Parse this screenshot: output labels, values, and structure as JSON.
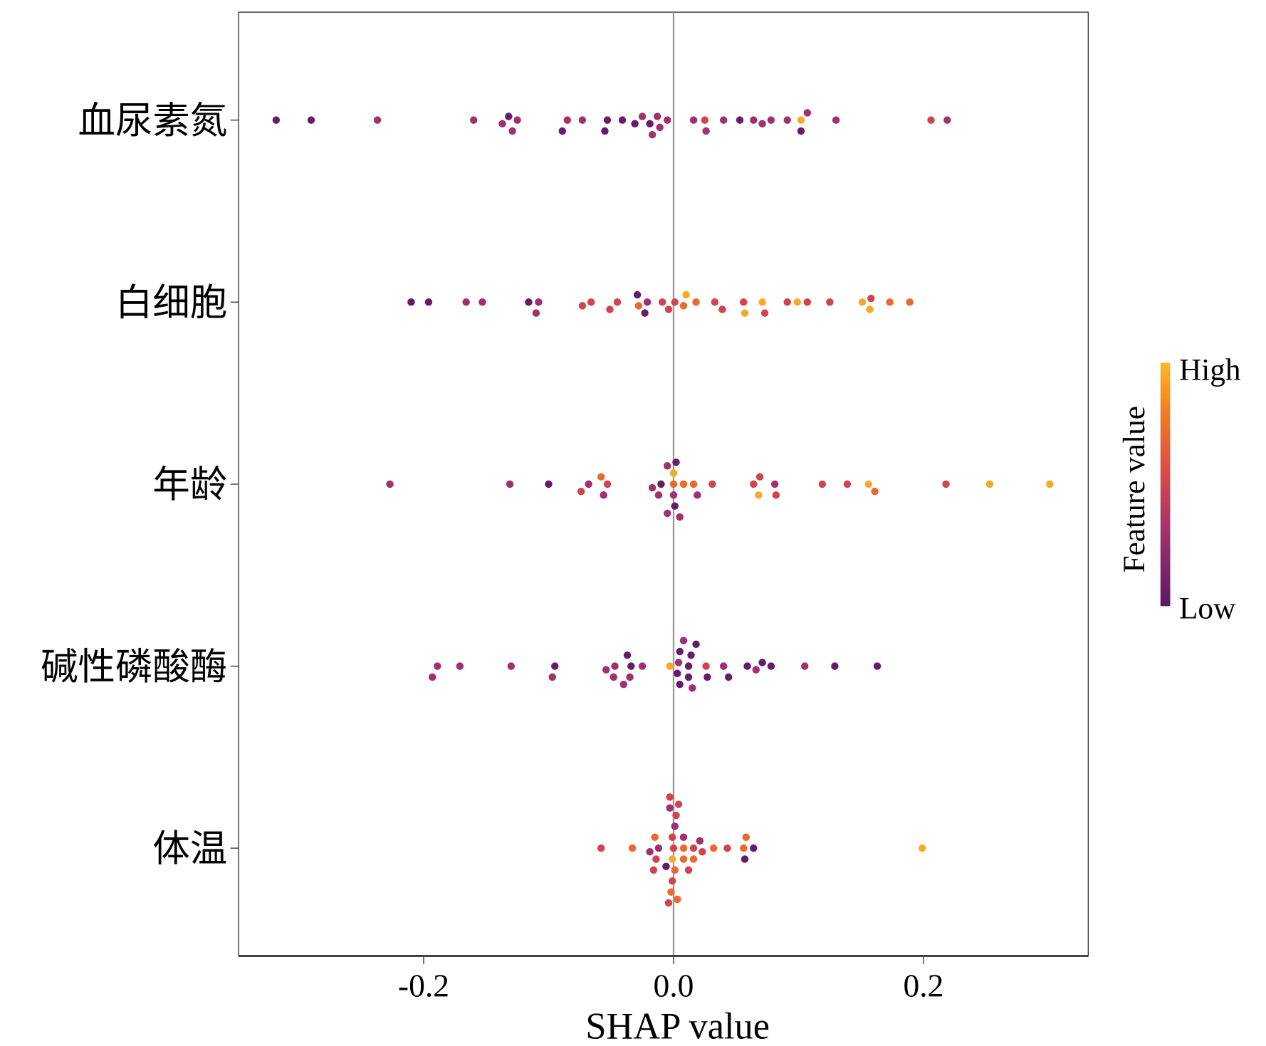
{
  "chart_data": {
    "type": "scatter",
    "subtype": "shap-beeswarm",
    "xlabel": "SHAP value",
    "ylabel": "",
    "xlim": [
      -0.345,
      0.335
    ],
    "xticks": [
      -0.2,
      0.0,
      0.2
    ],
    "xtick_labels": [
      "-0.2",
      "0.0",
      "0.2"
    ],
    "grid": false,
    "zero_line": true,
    "legend": {
      "title": "Feature value",
      "high_label": "High",
      "low_label": "Low",
      "placement": "right",
      "low_color": "#5a1868",
      "high_color": "#fbb829"
    },
    "features": [
      {
        "name": "血尿素氮",
        "points": [
          [
            -0.031,
            0.05
          ],
          [
            -0.013,
            0.3
          ],
          [
            0.025,
            0.5
          ],
          [
            0.102,
            0.95
          ],
          [
            0.064,
            0.3
          ],
          [
            0.078,
            0.3
          ],
          [
            -0.129,
            0.3
          ],
          [
            -0.073,
            0.3
          ],
          [
            -0.053,
            0.05
          ],
          [
            -0.005,
            0.3
          ],
          [
            -0.137,
            0.3
          ],
          [
            -0.089,
            0.05
          ],
          [
            -0.019,
            0.05
          ],
          [
            0.04,
            0.3
          ],
          [
            0.206,
            0.5
          ],
          [
            -0.237,
            0.3
          ],
          [
            -0.318,
            0.05
          ],
          [
            -0.29,
            0.05
          ],
          [
            -0.132,
            0.05
          ],
          [
            -0.16,
            0.3
          ],
          [
            -0.085,
            0.3
          ],
          [
            -0.041,
            0.05
          ],
          [
            0.016,
            0.3
          ],
          [
            0.053,
            0.05
          ],
          [
            0.091,
            0.3
          ],
          [
            0.107,
            0.3
          ],
          [
            0.13,
            0.3
          ],
          [
            0.219,
            0.3
          ],
          [
            -0.125,
            0.3
          ],
          [
            -0.055,
            0.05
          ],
          [
            -0.017,
            0.3
          ],
          [
            0.026,
            0.3
          ],
          [
            0.071,
            0.3
          ],
          [
            0.102,
            0.05
          ],
          [
            -0.011,
            0.3
          ],
          [
            -0.025,
            0.3
          ]
        ]
      },
      {
        "name": "白细胞",
        "points": [
          [
            -0.021,
            0.3
          ],
          [
            -0.045,
            0.5
          ],
          [
            0.008,
            0.7
          ],
          [
            0.039,
            0.5
          ],
          [
            0.073,
            0.5
          ],
          [
            0.125,
            0.5
          ],
          [
            -0.028,
            0.7
          ],
          [
            -0.108,
            0.3
          ],
          [
            0.018,
            0.7
          ],
          [
            0.099,
            0.95
          ],
          [
            0.173,
            0.7
          ],
          [
            -0.166,
            0.3
          ],
          [
            -0.116,
            0.05
          ],
          [
            -0.066,
            0.5
          ],
          [
            0.057,
            0.95
          ],
          [
            0.157,
            0.95
          ],
          [
            -0.21,
            0.05
          ],
          [
            -0.196,
            0.05
          ],
          [
            -0.11,
            0.3
          ],
          [
            -0.004,
            0.5
          ],
          [
            0.033,
            0.5
          ],
          [
            0.107,
            0.5
          ],
          [
            -0.023,
            0.05
          ],
          [
            -0.153,
            0.3
          ],
          [
            -0.051,
            0.5
          ],
          [
            0.071,
            0.95
          ],
          [
            0.158,
            0.5
          ],
          [
            0.189,
            0.7
          ],
          [
            0.091,
            0.5
          ],
          [
            -0.073,
            0.5
          ],
          [
            0.001,
            0.5
          ],
          [
            0.151,
            0.95
          ],
          [
            -0.029,
            0.05
          ],
          [
            0.01,
            0.95
          ],
          [
            0.056,
            0.5
          ],
          [
            -0.009,
            0.5
          ]
        ]
      },
      {
        "name": "年龄",
        "points": [
          [
            0.0,
            0.7
          ],
          [
            0.002,
            0.05
          ],
          [
            -0.01,
            0.05
          ],
          [
            0.019,
            0.3
          ],
          [
            -0.005,
            0.3
          ],
          [
            0.008,
            0.7
          ],
          [
            -0.056,
            0.3
          ],
          [
            0.069,
            0.5
          ],
          [
            0.082,
            0.5
          ],
          [
            0.139,
            0.5
          ],
          [
            -0.068,
            0.3
          ],
          [
            -0.017,
            0.3
          ],
          [
            0.064,
            0.5
          ],
          [
            0.119,
            0.5
          ],
          [
            0.161,
            0.7
          ],
          [
            0.253,
            0.95
          ],
          [
            0.301,
            0.95
          ],
          [
            -0.227,
            0.3
          ],
          [
            -0.131,
            0.3
          ],
          [
            -0.1,
            0.05
          ],
          [
            -0.058,
            0.7
          ],
          [
            0.001,
            0.05
          ],
          [
            0.016,
            0.7
          ],
          [
            0.068,
            0.95
          ],
          [
            0.081,
            0.3
          ],
          [
            0.218,
            0.5
          ],
          [
            -0.074,
            0.5
          ],
          [
            -0.053,
            0.5
          ],
          [
            0.031,
            0.5
          ],
          [
            0.156,
            0.95
          ],
          [
            -0.012,
            0.3
          ],
          [
            0.0,
            0.3
          ],
          [
            -0.005,
            0.3
          ],
          [
            0.005,
            0.3
          ],
          [
            0.0,
            0.95
          ]
        ]
      },
      {
        "name": "碱性磷酸酶",
        "points": [
          [
            0.014,
            0.05
          ],
          [
            -0.003,
            0.95
          ],
          [
            0.005,
            0.05
          ],
          [
            0.027,
            0.05
          ],
          [
            -0.037,
            0.05
          ],
          [
            -0.054,
            0.3
          ],
          [
            0.012,
            0.05
          ],
          [
            -0.034,
            0.05
          ],
          [
            0.066,
            0.3
          ],
          [
            0.018,
            0.05
          ],
          [
            0.044,
            0.05
          ],
          [
            -0.171,
            0.3
          ],
          [
            -0.193,
            0.3
          ],
          [
            -0.097,
            0.3
          ],
          [
            -0.047,
            0.3
          ],
          [
            0.004,
            0.3
          ],
          [
            0.059,
            0.05
          ],
          [
            0.078,
            0.05
          ],
          [
            0.129,
            0.05
          ],
          [
            -0.13,
            0.3
          ],
          [
            -0.095,
            0.05
          ],
          [
            -0.025,
            0.3
          ],
          [
            0.105,
            0.3
          ],
          [
            0.163,
            0.05
          ],
          [
            -0.189,
            0.3
          ],
          [
            0.012,
            0.05
          ],
          [
            0.026,
            0.5
          ],
          [
            0.04,
            0.3
          ],
          [
            -0.04,
            0.3
          ],
          [
            0.071,
            0.05
          ],
          [
            -0.035,
            0.3
          ],
          [
            0.005,
            0.05
          ],
          [
            -0.048,
            0.3
          ],
          [
            0.008,
            0.3
          ],
          [
            0.015,
            0.3
          ],
          [
            0.003,
            0.05
          ]
        ]
      },
      {
        "name": "体温",
        "points": [
          [
            -0.001,
            0.95
          ],
          [
            -0.003,
            0.3
          ],
          [
            0.002,
            0.5
          ],
          [
            0.008,
            0.7
          ],
          [
            -0.001,
            0.5
          ],
          [
            -0.012,
            0.3
          ],
          [
            0.004,
            0.5
          ],
          [
            0.016,
            0.5
          ],
          [
            -0.019,
            0.3
          ],
          [
            -0.016,
            0.5
          ],
          [
            -0.004,
            0.5
          ],
          [
            0.001,
            0.7
          ],
          [
            0.012,
            0.5
          ],
          [
            0.023,
            0.5
          ],
          [
            0.032,
            0.7
          ],
          [
            0.043,
            0.5
          ],
          [
            0.064,
            0.05
          ],
          [
            0.057,
            0.05
          ],
          [
            -0.058,
            0.5
          ],
          [
            -0.033,
            0.7
          ],
          [
            -0.014,
            0.5
          ],
          [
            -0.002,
            0.7
          ],
          [
            0.008,
            0.7
          ],
          [
            0.016,
            0.7
          ],
          [
            0.021,
            0.3
          ],
          [
            0.058,
            0.7
          ],
          [
            0.199,
            0.95
          ],
          [
            -0.015,
            0.7
          ],
          [
            -0.003,
            0.5
          ],
          [
            0.056,
            0.7
          ],
          [
            -0.006,
            0.05
          ],
          [
            0.008,
            0.3
          ],
          [
            0.001,
            0.3
          ],
          [
            -0.001,
            0.5
          ],
          [
            0.003,
            0.7
          ],
          [
            0.0,
            0.5
          ]
        ]
      }
    ]
  }
}
